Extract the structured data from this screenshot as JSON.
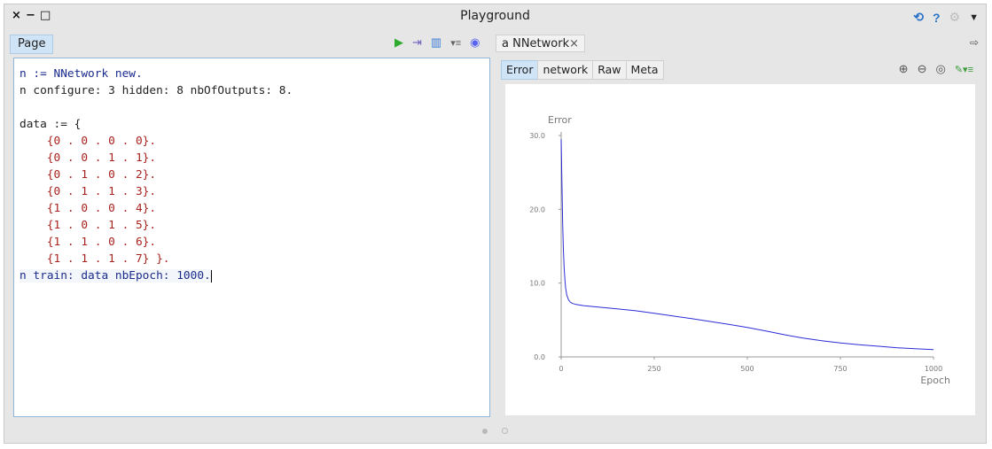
{
  "window": {
    "title": "Playground",
    "controls": [
      "×",
      "−",
      "□"
    ]
  },
  "left": {
    "tab_label": "Page",
    "toolbar_icons": [
      "run-icon",
      "inspect-icon",
      "table-icon",
      "menu-icon",
      "discord-icon"
    ],
    "code_lines": [
      "n := NNetwork new.",
      "n configure: 3 hidden: 8 nbOfOutputs: 8.",
      "",
      "data := {",
      "    {0 . 0 . 0 . 0}.",
      "    {0 . 0 . 1 . 1}.",
      "    {0 . 1 . 0 . 2}.",
      "    {0 . 1 . 1 . 3}.",
      "    {1 . 0 . 0 . 4}.",
      "    {1 . 0 . 1 . 5}.",
      "    {1 . 1 . 0 . 6}.",
      "    {1 . 1 . 1 . 7} }.",
      "n train: data nbEpoch: 1000."
    ]
  },
  "right": {
    "tab_label": "a NNetwork",
    "tab_close": "×",
    "subtabs": [
      "Error",
      "network",
      "Raw",
      "Meta"
    ],
    "active_subtab": "Error"
  },
  "chart_data": {
    "type": "line",
    "ylabel": "Error",
    "xlabel": "Epoch",
    "xlim": [
      0,
      1000
    ],
    "ylim": [
      0,
      30
    ],
    "xticks": [
      "0",
      "250",
      "500",
      "750",
      "1000"
    ],
    "yticks": [
      "0.0",
      "10.0",
      "20.0",
      "30.0"
    ],
    "line_color": "#2c2cd6",
    "series": [
      {
        "x": [
          0,
          2,
          4,
          6,
          8,
          10,
          12,
          15,
          20,
          25,
          30,
          40,
          60,
          100,
          150,
          200,
          250,
          300,
          350,
          400,
          450,
          500,
          550,
          600,
          650,
          700,
          750,
          800,
          850,
          900,
          950,
          1000
        ],
        "y": [
          29.5,
          24,
          18,
          14.5,
          12,
          10.5,
          9.4,
          8.4,
          7.7,
          7.4,
          7.25,
          7.1,
          6.95,
          6.75,
          6.5,
          6.25,
          5.9,
          5.55,
          5.2,
          4.8,
          4.4,
          4.0,
          3.5,
          3.0,
          2.55,
          2.2,
          1.9,
          1.65,
          1.45,
          1.25,
          1.1,
          1.0
        ]
      }
    ]
  },
  "colors": {
    "background": "#e6e6e6",
    "accent": "#cfe4f7",
    "keyword": "#1a2b8c",
    "number": "#a8231f",
    "run": "#2eaa2e"
  },
  "pager": [
    "active",
    "inactive"
  ]
}
